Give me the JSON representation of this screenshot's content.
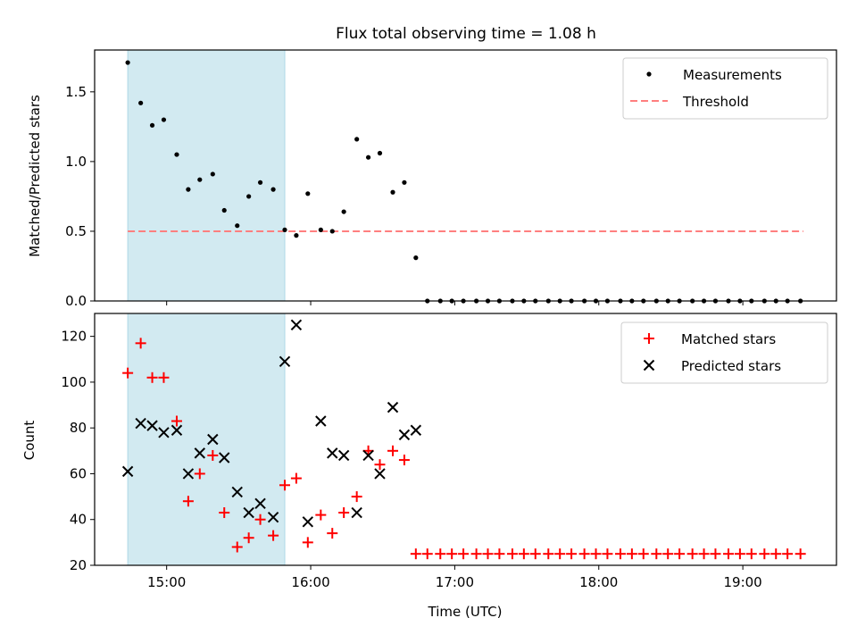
{
  "title": "Flux total observing time = 1.08 h",
  "colors": {
    "shade": "#add8e6",
    "threshold": "#ff7f7f",
    "matched": "#ff0000",
    "predicted": "#000000",
    "measurements": "#000000"
  },
  "chart_data": [
    {
      "type": "scatter",
      "ylabel": "Matched/Predicted stars",
      "xlim": [
        14.5,
        19.65
      ],
      "ylim": [
        0,
        1.8
      ],
      "yticks": [
        0.0,
        0.5,
        1.0,
        1.5
      ],
      "ytick_labels": [
        "0.0",
        "0.5",
        "1.0",
        "1.5"
      ],
      "shaded_x_range": [
        14.73,
        15.82
      ],
      "legend_position": "top-right",
      "legend": [
        {
          "label": "Measurements",
          "marker": "dot"
        },
        {
          "label": "Threshold",
          "marker": "dashed-line"
        }
      ],
      "threshold": {
        "name": "Threshold",
        "value": 0.5,
        "x_range": [
          14.73,
          19.42
        ]
      },
      "series": [
        {
          "name": "Measurements",
          "x": [
            14.73,
            14.82,
            14.9,
            14.98,
            15.07,
            15.15,
            15.23,
            15.32,
            15.4,
            15.49,
            15.57,
            15.65,
            15.74,
            15.82,
            15.9,
            15.98,
            16.07,
            16.15,
            16.23,
            16.32,
            16.4,
            16.48,
            16.57,
            16.65,
            16.73,
            16.81,
            16.9,
            16.98,
            17.06,
            17.15,
            17.23,
            17.31,
            17.4,
            17.48,
            17.56,
            17.65,
            17.73,
            17.81,
            17.9,
            17.98,
            18.06,
            18.15,
            18.23,
            18.31,
            18.4,
            18.48,
            18.56,
            18.65,
            18.73,
            18.81,
            18.9,
            18.98,
            19.06,
            19.15,
            19.23,
            19.31,
            19.4
          ],
          "y": [
            1.71,
            1.42,
            1.26,
            1.3,
            1.05,
            0.8,
            0.87,
            0.91,
            0.65,
            0.54,
            0.75,
            0.85,
            0.8,
            0.51,
            0.47,
            0.77,
            0.51,
            0.5,
            0.64,
            1.16,
            1.03,
            1.06,
            0.78,
            0.85,
            0.31,
            0,
            0,
            0,
            0,
            0,
            0,
            0,
            0,
            0,
            0,
            0,
            0,
            0,
            0,
            0,
            0,
            0,
            0,
            0,
            0,
            0,
            0,
            0,
            0,
            0,
            0,
            0,
            0,
            0,
            0,
            0,
            0
          ]
        }
      ]
    },
    {
      "type": "scatter",
      "xlabel": "Time (UTC)",
      "ylabel": "Count",
      "xlim": [
        14.5,
        19.65
      ],
      "ylim": [
        20,
        130
      ],
      "yticks": [
        20,
        40,
        60,
        80,
        100,
        120
      ],
      "ytick_labels": [
        "20",
        "40",
        "60",
        "80",
        "100",
        "120"
      ],
      "xticks": [
        15,
        16,
        17,
        18,
        19
      ],
      "xtick_labels": [
        "15:00",
        "16:00",
        "17:00",
        "18:00",
        "19:00"
      ],
      "shaded_x_range": [
        14.73,
        15.82
      ],
      "legend_position": "top-right",
      "legend": [
        {
          "label": "Matched stars",
          "marker": "plus"
        },
        {
          "label": "Predicted stars",
          "marker": "x"
        }
      ],
      "series": [
        {
          "name": "Matched stars",
          "x": [
            14.73,
            14.82,
            14.9,
            14.98,
            15.07,
            15.15,
            15.23,
            15.32,
            15.4,
            15.49,
            15.57,
            15.65,
            15.74,
            15.82,
            15.9,
            15.98,
            16.07,
            16.15,
            16.23,
            16.32,
            16.4,
            16.48,
            16.57,
            16.65,
            16.73,
            16.81,
            16.9,
            16.98,
            17.06,
            17.15,
            17.23,
            17.31,
            17.4,
            17.48,
            17.56,
            17.65,
            17.73,
            17.81,
            17.9,
            17.98,
            18.06,
            18.15,
            18.23,
            18.31,
            18.4,
            18.48,
            18.56,
            18.65,
            18.73,
            18.81,
            18.9,
            18.98,
            19.06,
            19.15,
            19.23,
            19.31,
            19.4
          ],
          "y": [
            104,
            117,
            102,
            102,
            83,
            48,
            60,
            68,
            43,
            28,
            32,
            40,
            33,
            55,
            58,
            30,
            42,
            34,
            43,
            50,
            70,
            64,
            70,
            66,
            25,
            25,
            25,
            25,
            25,
            25,
            25,
            25,
            25,
            25,
            25,
            25,
            25,
            25,
            25,
            25,
            25,
            25,
            25,
            25,
            25,
            25,
            25,
            25,
            25,
            25,
            25,
            25,
            25,
            25,
            25,
            25,
            25
          ]
        },
        {
          "name": "Predicted stars",
          "x": [
            14.73,
            14.82,
            14.9,
            14.98,
            15.07,
            15.15,
            15.23,
            15.32,
            15.4,
            15.49,
            15.57,
            15.65,
            15.74,
            15.82,
            15.9,
            15.98,
            16.07,
            16.15,
            16.23,
            16.32,
            16.4,
            16.48,
            16.57,
            16.65,
            16.73
          ],
          "y": [
            61,
            82,
            81,
            78,
            79,
            60,
            69,
            75,
            67,
            52,
            43,
            47,
            41,
            109,
            125,
            39,
            83,
            69,
            68,
            43,
            68,
            60,
            89,
            77,
            79
          ]
        }
      ]
    }
  ]
}
